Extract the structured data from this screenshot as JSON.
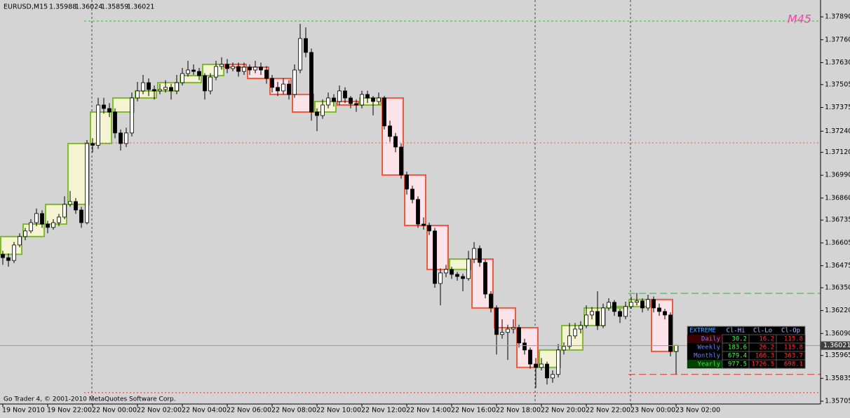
{
  "chart_data": {
    "type": "candlestick",
    "title": "EURUSD,M15",
    "watermark": "M45",
    "copyright": "Go Trader 4, © 2001-2010 MetaQuotes Software Corp.",
    "xlim": [
      -0.5,
      145.75
    ],
    "ylim": [
      1.35689,
      1.37986
    ],
    "xticks": [
      {
        "value": 0,
        "label": "19 Nov 2010"
      },
      {
        "value": 8,
        "label": "19 Nov 22:00"
      },
      {
        "value": 16,
        "label": "22 Nov 00:00"
      },
      {
        "value": 24,
        "label": "22 Nov 02:00"
      },
      {
        "value": 32,
        "label": "22 Nov 04:00"
      },
      {
        "value": 40,
        "label": "22 Nov 06:00"
      },
      {
        "value": 48,
        "label": "22 Nov 08:00"
      },
      {
        "value": 56,
        "label": "22 Nov 10:00"
      },
      {
        "value": 64,
        "label": "22 Nov 12:00"
      },
      {
        "value": 72,
        "label": "22 Nov 14:00"
      },
      {
        "value": 80,
        "label": "22 Nov 16:00"
      },
      {
        "value": 88,
        "label": "22 Nov 18:00"
      },
      {
        "value": 96,
        "label": "22 Nov 20:00"
      },
      {
        "value": 104,
        "label": "22 Nov 22:00"
      },
      {
        "value": 112,
        "label": "23 Nov 00:00"
      },
      {
        "value": 120,
        "label": "23 Nov 02:00"
      }
    ],
    "yticks": [
      {
        "value": 1.3789,
        "label": "1.37890"
      },
      {
        "value": 1.3776,
        "label": "1.37760"
      },
      {
        "value": 1.3763,
        "label": "1.37630"
      },
      {
        "value": 1.37505,
        "label": "1.37505"
      },
      {
        "value": 1.37375,
        "label": "1.37375"
      },
      {
        "value": 1.3724,
        "label": "1.37240"
      },
      {
        "value": 1.3712,
        "label": "1.37120"
      },
      {
        "value": 1.3699,
        "label": "1.36990"
      },
      {
        "value": 1.3686,
        "label": "1.36860"
      },
      {
        "value": 1.36735,
        "label": "1.36735"
      },
      {
        "value": 1.36605,
        "label": "1.36605"
      },
      {
        "value": 1.36475,
        "label": "1.36475"
      },
      {
        "value": 1.3635,
        "label": "1.36350"
      },
      {
        "value": 1.3622,
        "label": "1.36220"
      },
      {
        "value": 1.3609,
        "label": "1.36090"
      },
      {
        "value": 1.35965,
        "label": "1.35965"
      },
      {
        "value": 1.35835,
        "label": "1.35835"
      },
      {
        "value": 1.35705,
        "label": "1.35705"
      }
    ],
    "up_color": "#ffffff",
    "down_color": "#000000",
    "candles": [
      [
        1.3654,
        1.3656,
        1.3648,
        1.36521
      ],
      [
        1.36521,
        1.36545,
        1.3647,
        1.36505
      ],
      [
        1.36505,
        1.3661,
        1.3649,
        1.36593
      ],
      [
        1.36593,
        1.3666,
        1.3658,
        1.36641
      ],
      [
        1.36641,
        1.3669,
        1.3662,
        1.36673
      ],
      [
        1.36673,
        1.3674,
        1.3666,
        1.3672
      ],
      [
        1.3672,
        1.368,
        1.367,
        1.36772
      ],
      [
        1.36772,
        1.3679,
        1.3669,
        1.36712
      ],
      [
        1.36712,
        1.3673,
        1.3666,
        1.36693
      ],
      [
        1.36693,
        1.3674,
        1.3668,
        1.3672
      ],
      [
        1.3672,
        1.3677,
        1.367,
        1.36752
      ],
      [
        1.36752,
        1.3687,
        1.3674,
        1.36824
      ],
      [
        1.36824,
        1.369,
        1.3681,
        1.3684
      ],
      [
        1.3684,
        1.3686,
        1.3677,
        1.36792
      ],
      [
        1.36792,
        1.3681,
        1.3669,
        1.3672
      ],
      [
        1.3672,
        1.3719,
        1.3671,
        1.3717
      ],
      [
        1.3717,
        1.372,
        1.3712,
        1.3716
      ],
      [
        1.3716,
        1.3743,
        1.3714,
        1.37389
      ],
      [
        1.37389,
        1.3743,
        1.3734,
        1.37369
      ],
      [
        1.37369,
        1.374,
        1.3732,
        1.37349
      ],
      [
        1.37349,
        1.3737,
        1.372,
        1.3723
      ],
      [
        1.3723,
        1.3725,
        1.3713,
        1.3717
      ],
      [
        1.3717,
        1.3726,
        1.3715,
        1.3723
      ],
      [
        1.3723,
        1.3746,
        1.3721,
        1.37429
      ],
      [
        1.37429,
        1.3752,
        1.3741,
        1.37469
      ],
      [
        1.37469,
        1.3756,
        1.3745,
        1.37516
      ],
      [
        1.37516,
        1.3754,
        1.3744,
        1.37477
      ],
      [
        1.37477,
        1.375,
        1.3742,
        1.37469
      ],
      [
        1.37469,
        1.3751,
        1.3745,
        1.37477
      ],
      [
        1.37477,
        1.3753,
        1.3746,
        1.37489
      ],
      [
        1.37489,
        1.3751,
        1.3742,
        1.37469
      ],
      [
        1.37469,
        1.3756,
        1.3745,
        1.37516
      ],
      [
        1.37516,
        1.376,
        1.375,
        1.37568
      ],
      [
        1.37568,
        1.3764,
        1.3755,
        1.37588
      ],
      [
        1.37588,
        1.3762,
        1.3756,
        1.3758
      ],
      [
        1.3758,
        1.376,
        1.3753,
        1.37556
      ],
      [
        1.37556,
        1.3757,
        1.3742,
        1.37469
      ],
      [
        1.37469,
        1.3757,
        1.3745,
        1.37548
      ],
      [
        1.37548,
        1.3764,
        1.3753,
        1.37608
      ],
      [
        1.37608,
        1.3766,
        1.3759,
        1.3762
      ],
      [
        1.3762,
        1.3765,
        1.3757,
        1.37596
      ],
      [
        1.37596,
        1.3763,
        1.3758,
        1.37608
      ],
      [
        1.37608,
        1.3763,
        1.3755,
        1.3758
      ],
      [
        1.3758,
        1.3763,
        1.3756,
        1.37604
      ],
      [
        1.37604,
        1.3762,
        1.3756,
        1.37588
      ],
      [
        1.37588,
        1.3764,
        1.3757,
        1.37604
      ],
      [
        1.37604,
        1.3763,
        1.3756,
        1.37588
      ],
      [
        1.37588,
        1.3761,
        1.3751,
        1.3754
      ],
      [
        1.3754,
        1.3756,
        1.3746,
        1.37489
      ],
      [
        1.37489,
        1.3752,
        1.3744,
        1.37469
      ],
      [
        1.37469,
        1.3754,
        1.3745,
        1.37508
      ],
      [
        1.37508,
        1.3753,
        1.3742,
        1.37449
      ],
      [
        1.37449,
        1.3762,
        1.3743,
        1.37588
      ],
      [
        1.37588,
        1.3785,
        1.3757,
        1.37767
      ],
      [
        1.37767,
        1.3783,
        1.3766,
        1.37688
      ],
      [
        1.37688,
        1.3771,
        1.373,
        1.37349
      ],
      [
        1.37349,
        1.3737,
        1.3724,
        1.37329
      ],
      [
        1.37329,
        1.3742,
        1.3731,
        1.37389
      ],
      [
        1.37389,
        1.3746,
        1.3737,
        1.37429
      ],
      [
        1.37429,
        1.3745,
        1.3738,
        1.37409
      ],
      [
        1.37409,
        1.375,
        1.3739,
        1.37469
      ],
      [
        1.37469,
        1.3749,
        1.374,
        1.37429
      ],
      [
        1.37429,
        1.3744,
        1.3737,
        1.37397
      ],
      [
        1.37397,
        1.3742,
        1.3735,
        1.37389
      ],
      [
        1.37389,
        1.3747,
        1.3737,
        1.37449
      ],
      [
        1.37449,
        1.3747,
        1.374,
        1.37429
      ],
      [
        1.37429,
        1.3744,
        1.3733,
        1.37409
      ],
      [
        1.37409,
        1.3746,
        1.3739,
        1.37429
      ],
      [
        1.37429,
        1.3744,
        1.3725,
        1.3727
      ],
      [
        1.3727,
        1.373,
        1.3718,
        1.3721
      ],
      [
        1.3721,
        1.3723,
        1.3712,
        1.3715
      ],
      [
        1.3715,
        1.3717,
        1.3697,
        1.36991
      ],
      [
        1.36991,
        1.3701,
        1.3688,
        1.36911
      ],
      [
        1.36911,
        1.3693,
        1.3683,
        1.36852
      ],
      [
        1.36852,
        1.3687,
        1.3669,
        1.36712
      ],
      [
        1.36712,
        1.3675,
        1.3668,
        1.36704
      ],
      [
        1.36704,
        1.3672,
        1.3665,
        1.36673
      ],
      [
        1.36673,
        1.3669,
        1.3635,
        1.36374
      ],
      [
        1.36374,
        1.3646,
        1.3625,
        1.36434
      ],
      [
        1.36434,
        1.3648,
        1.3641,
        1.36454
      ],
      [
        1.36454,
        1.3647,
        1.364,
        1.36426
      ],
      [
        1.36426,
        1.3644,
        1.3639,
        1.36414
      ],
      [
        1.36414,
        1.3643,
        1.3633,
        1.36402
      ],
      [
        1.36402,
        1.3656,
        1.3639,
        1.36513
      ],
      [
        1.36513,
        1.3661,
        1.3649,
        1.36573
      ],
      [
        1.36573,
        1.3659,
        1.3647,
        1.36494
      ],
      [
        1.36494,
        1.3651,
        1.3629,
        1.36314
      ],
      [
        1.36314,
        1.3633,
        1.3621,
        1.36235
      ],
      [
        1.36235,
        1.3625,
        1.3597,
        1.36084
      ],
      [
        1.36084,
        1.3617,
        1.3606,
        1.36096
      ],
      [
        1.36096,
        1.3614,
        1.3594,
        1.36115
      ],
      [
        1.36115,
        1.3617,
        1.3609,
        1.36123
      ],
      [
        1.36123,
        1.3614,
        1.3601,
        1.36036
      ],
      [
        1.36036,
        1.3606,
        1.3597,
        1.35996
      ],
      [
        1.35996,
        1.3601,
        1.3589,
        1.35916
      ],
      [
        1.35916,
        1.3595,
        1.3578,
        1.35897
      ],
      [
        1.35897,
        1.3595,
        1.3588,
        1.35916
      ],
      [
        1.35916,
        1.3593,
        1.358,
        1.35837
      ],
      [
        1.35837,
        1.3588,
        1.3581,
        1.35857
      ],
      [
        1.35857,
        1.3603,
        1.3584,
        1.35996
      ],
      [
        1.35996,
        1.3604,
        1.3597,
        1.36016
      ],
      [
        1.36016,
        1.3615,
        1.36,
        1.36076
      ],
      [
        1.36076,
        1.3615,
        1.3606,
        1.36115
      ],
      [
        1.36115,
        1.3616,
        1.3609,
        1.36135
      ],
      [
        1.36135,
        1.3625,
        1.3612,
        1.36195
      ],
      [
        1.36195,
        1.3624,
        1.3617,
        1.36215
      ],
      [
        1.36215,
        1.3633,
        1.3611,
        1.36135
      ],
      [
        1.36135,
        1.3626,
        1.3612,
        1.36235
      ],
      [
        1.36235,
        1.3629,
        1.3622,
        1.36267
      ],
      [
        1.36267,
        1.3628,
        1.3619,
        1.36215
      ],
      [
        1.36215,
        1.3623,
        1.3615,
        1.36187
      ],
      [
        1.36187,
        1.3627,
        1.3617,
        1.36243
      ],
      [
        1.36243,
        1.363,
        1.3623,
        1.36267
      ],
      [
        1.36267,
        1.3632,
        1.3625,
        1.36275
      ],
      [
        1.36275,
        1.3629,
        1.3621,
        1.36235
      ],
      [
        1.36235,
        1.3631,
        1.3622,
        1.36283
      ],
      [
        1.36283,
        1.363,
        1.3621,
        1.36235
      ],
      [
        1.36235,
        1.3626,
        1.3619,
        1.36215
      ],
      [
        1.36215,
        1.3623,
        1.3617,
        1.36195
      ],
      [
        1.36195,
        1.3621,
        1.3596,
        1.35988
      ],
      [
        1.35988,
        1.36024,
        1.35859,
        1.36021
      ]
    ],
    "group_size": 4,
    "group_up_color": "#80b830",
    "group_down_color": "#f05a3c",
    "levels": [
      {
        "value": 1.37866,
        "color": "#30c030",
        "dash": "3,3",
        "from": 15
      },
      {
        "value": 1.37174,
        "color": "#e07060",
        "dash": "2,3",
        "from": 15
      },
      {
        "value": 1.35753,
        "color": "#e03030",
        "dash": "2,3",
        "from": 15
      },
      {
        "value": 1.36318,
        "color": "#30b030",
        "dash": "10,5",
        "from": 112
      },
      {
        "value": 1.35857,
        "color": "#e03030",
        "dash": "10,5",
        "from": 112
      }
    ],
    "table": {
      "header": [
        "EXTREME",
        "Cl-Hi",
        "Cl-Lo",
        "Cl-Op"
      ],
      "rows": [
        [
          "Daily",
          30.2,
          16.2,
          115.8
        ],
        [
          "Weekly",
          183.6,
          26.2,
          115.8
        ],
        [
          "Monthly",
          679.4,
          166.3,
          363.7
        ],
        [
          "Yearly",
          977.5,
          1726.5,
          698.1
        ]
      ]
    }
  }
}
